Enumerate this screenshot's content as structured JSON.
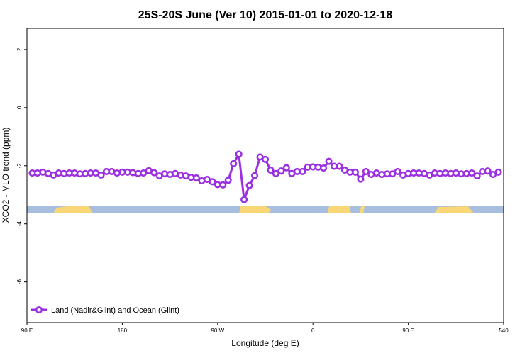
{
  "chart_data": {
    "type": "line",
    "title": "25S-20S June (Ver 10)   2015-01-01 to 2020-12-18",
    "x_label": "Longitude (deg E)",
    "y_label": "XCO2 - MLO trend (ppm)",
    "x": [
      95,
      100,
      105,
      110,
      115,
      120,
      125,
      130,
      135,
      140,
      145,
      150,
      155,
      160,
      165,
      170,
      175,
      180,
      185,
      190,
      195,
      200,
      205,
      210,
      215,
      220,
      225,
      230,
      235,
      240,
      245,
      250,
      255,
      260,
      265,
      270,
      275,
      280,
      285,
      290,
      295,
      300,
      305,
      310,
      315,
      320,
      325,
      330,
      335,
      340,
      345,
      350,
      355,
      360,
      365,
      370,
      375,
      380,
      385,
      390,
      395,
      400,
      405,
      410,
      415,
      420,
      425,
      430,
      435,
      440,
      445,
      450,
      455,
      460,
      465,
      470,
      475,
      480,
      485,
      490,
      495,
      500,
      505,
      510,
      515,
      520,
      525,
      530,
      535
    ],
    "series": [
      {
        "name": "Land (Nadir&Glint) and Ocean (Glint)",
        "color": "#9b30e0",
        "values": [
          -2.25,
          -2.25,
          -2.22,
          -2.27,
          -2.32,
          -2.25,
          -2.27,
          -2.25,
          -2.25,
          -2.28,
          -2.27,
          -2.25,
          -2.25,
          -2.32,
          -2.2,
          -2.2,
          -2.25,
          -2.22,
          -2.22,
          -2.24,
          -2.27,
          -2.25,
          -2.17,
          -2.24,
          -2.35,
          -2.28,
          -2.3,
          -2.27,
          -2.32,
          -2.35,
          -2.4,
          -2.42,
          -2.52,
          -2.47,
          -2.55,
          -2.65,
          -2.66,
          -2.5,
          -1.93,
          -1.6,
          -3.17,
          -2.68,
          -2.34,
          -1.7,
          -1.78,
          -2.15,
          -2.27,
          -2.18,
          -2.07,
          -2.27,
          -2.2,
          -2.2,
          -2.05,
          -2.04,
          -2.05,
          -2.08,
          -1.85,
          -2.02,
          -2.02,
          -2.15,
          -2.22,
          -2.22,
          -2.46,
          -2.2,
          -2.3,
          -2.25,
          -2.3,
          -2.28,
          -2.28,
          -2.2,
          -2.32,
          -2.27,
          -2.25,
          -2.25,
          -2.27,
          -2.32,
          -2.25,
          -2.27,
          -2.25,
          -2.27,
          -2.25,
          -2.28,
          -2.27,
          -2.25,
          -2.35,
          -2.2,
          -2.18,
          -2.3,
          -2.22
        ]
      }
    ],
    "xlim": [
      90,
      540
    ],
    "xticks": [
      {
        "value": 90,
        "label": "90 E"
      },
      180,
      {
        "value": 270,
        "label": "90 W"
      },
      {
        "value": 360,
        "label": "0"
      },
      {
        "value": 450,
        "label": "90 E"
      },
      540
    ],
    "ylim": [
      -7.4,
      2.73
    ],
    "yticks": [
      2,
      0,
      -2,
      -4,
      -6
    ],
    "legend": "bottom-left"
  }
}
